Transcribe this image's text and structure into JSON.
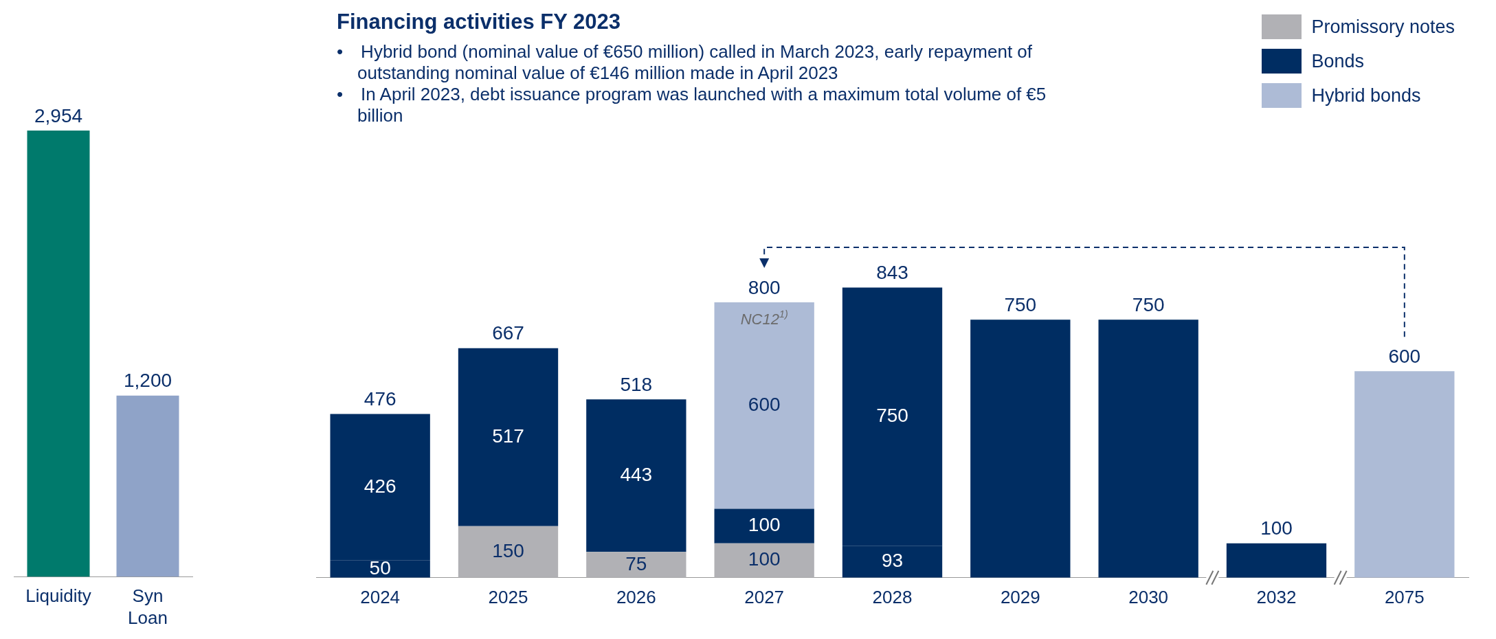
{
  "chart_data": [
    {
      "type": "bar",
      "categories": [
        "Liquidity",
        "Syn Loan"
      ],
      "values": [
        2954,
        1200
      ],
      "colors": [
        "#007a6c",
        "#8fa3c8"
      ],
      "value_labels": [
        "2,954",
        "1,200"
      ],
      "grid": false
    },
    {
      "type": "bar",
      "title": "Financing activities FY 2023",
      "annotations": [
        "• Hybrid bond (nominal value of €650 million) called in March 2023, early repayment of outstanding nominal value of €146 million made in April 2023",
        "• In April 2023, debt issuance program was launched with a maximum total volume of €5 billion",
        "NC12$^{1)}$"
      ],
      "categories": [
        "2024",
        "2025",
        "2026",
        "2027",
        "2028",
        "2029",
        "2030",
        "2032",
        "2075"
      ],
      "stacked": true,
      "grid": false,
      "legend": "top right",
      "series": [
        {
          "color": "#002d62",
          "values": [
            50,
            null,
            null,
            null,
            93,
            null,
            null,
            null,
            null
          ],
          "value_labels": [
            "50",
            null,
            null,
            null,
            "93",
            null,
            null,
            null,
            null
          ]
        },
        {
          "name": "Promissory notes",
          "color": "#b1b1b5",
          "values": [
            null,
            150,
            75,
            100,
            null,
            null,
            null,
            null,
            null
          ],
          "value_labels": [
            null,
            "150",
            "75",
            "100",
            null,
            null,
            null,
            null,
            null
          ]
        },
        {
          "name": "Bonds",
          "color": "#002d62",
          "values": [
            426,
            517,
            443,
            100,
            750,
            750,
            750,
            100,
            null
          ],
          "value_labels": [
            "426",
            "517",
            "443",
            "100",
            "750",
            null,
            null,
            null,
            null
          ]
        },
        {
          "name": "Hybrid bonds",
          "color": "#adbbd6",
          "values": [
            null,
            null,
            null,
            600,
            null,
            null,
            null,
            null,
            600
          ],
          "value_labels": [
            null,
            null,
            null,
            "600",
            null,
            null,
            null,
            null,
            null
          ]
        }
      ],
      "totals": [
        "476",
        "667",
        "518",
        "800",
        "843",
        "750",
        "750",
        "100",
        "600"
      ]
    }
  ]
}
